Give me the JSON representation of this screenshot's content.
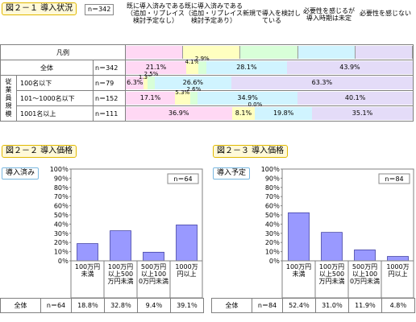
{
  "fig1": {
    "title": "図２－１ 導入状況",
    "n": "n＝342",
    "columns": [
      {
        "label": "既に導入済みである（追加・リプレイス検討予定なし）",
        "color": "#ffd8f4"
      },
      {
        "label": "既に導入済みである（追加・リプレイス検討予定あり）",
        "color": "#ffffc0"
      },
      {
        "label": "新規で導入を検討している",
        "color": "#d8ffd8"
      },
      {
        "label": "必要性を感じるが導入時期は未定",
        "color": "#d0f4ff"
      },
      {
        "label": "必要性を感じない",
        "color": "#e4dcf8"
      }
    ],
    "legend_label": "凡例",
    "group_label": "従業員規模",
    "rows": [
      {
        "label": "全体",
        "n": "n＝342",
        "values": [
          21.1,
          4.1,
          2.9,
          28.1,
          43.9
        ],
        "labels": [
          "21.1%",
          "4.1%",
          "2.9%",
          "28.1%",
          "43.9%"
        ]
      },
      {
        "label": "100名以下",
        "n": "n＝79",
        "values": [
          6.3,
          1.3,
          2.5,
          26.6,
          63.3
        ],
        "labels": [
          "6.3%",
          "1.3%",
          "2.5%",
          "26.6%",
          "63.3%"
        ]
      },
      {
        "label": "101～1000名以下",
        "n": "n＝152",
        "values": [
          17.1,
          5.3,
          2.6,
          34.9,
          40.1
        ],
        "labels": [
          "17.1%",
          "5.3%",
          "2.6%",
          "34.9%",
          "40.1%"
        ]
      },
      {
        "label": "1001名以上",
        "n": "n＝111",
        "values": [
          36.9,
          8.1,
          0.0,
          19.8,
          35.1
        ],
        "labels": [
          "36.9%",
          "8.1%",
          "0.0%",
          "19.8%",
          "35.1%"
        ]
      }
    ]
  },
  "fig2": {
    "title": "図２－２ 導入価格",
    "label": "導入済み",
    "n": "n＝64",
    "row_label": "全体",
    "categories": [
      "100万円未満",
      "100万円以上500万円未満",
      "500万円以上1000万円未満",
      "1000万円以上"
    ],
    "values": [
      18.8,
      32.8,
      9.4,
      39.1
    ],
    "labels": [
      "18.8％",
      "32.8％",
      "9.4％",
      "39.1％"
    ]
  },
  "fig3": {
    "title": "図２－３ 導入価格",
    "label": "導入予定",
    "n": "n＝84",
    "row_label": "全体",
    "categories": [
      "100万円未満",
      "100万円以上500万円未満",
      "500万円以上1000万円未満",
      "1000万円以上"
    ],
    "values": [
      52.4,
      31.0,
      11.9,
      4.8
    ],
    "labels": [
      "52.4％",
      "31.0％",
      "11.9％",
      "4.8％"
    ]
  },
  "axis_ticks": [
    "0％",
    "10％",
    "20％",
    "30％",
    "40％",
    "50％",
    "60％",
    "70％",
    "80％",
    "90％",
    "100％"
  ],
  "chart_data": [
    {
      "type": "bar",
      "title": "図２－１ 導入状況",
      "categories": [
        "全体",
        "100名以下",
        "101～1000名以下",
        "1001名以上"
      ],
      "series": [
        {
          "name": "既に導入済みである（追加・リプレイス検討予定なし）",
          "values": [
            21.1,
            6.3,
            17.1,
            36.9
          ]
        },
        {
          "name": "既に導入済みである（追加・リプレイス検討予定あり）",
          "values": [
            4.1,
            1.3,
            5.3,
            8.1
          ]
        },
        {
          "name": "新規で導入を検討している",
          "values": [
            2.9,
            2.5,
            2.6,
            0.0
          ]
        },
        {
          "name": "必要性を感じるが導入時期は未定",
          "values": [
            28.1,
            26.6,
            34.9,
            19.8
          ]
        },
        {
          "name": "必要性を感じない",
          "values": [
            43.9,
            63.3,
            40.1,
            35.1
          ]
        }
      ]
    },
    {
      "type": "bar",
      "title": "図２－２ 導入価格",
      "categories": [
        "100万円未満",
        "100万円以上500万円未満",
        "500万円以上1000万円未満",
        "1000万円以上"
      ],
      "values": [
        18.8,
        32.8,
        9.4,
        39.1
      ],
      "ylim": [
        0,
        100
      ]
    },
    {
      "type": "bar",
      "title": "図２－３ 導入価格",
      "categories": [
        "100万円未満",
        "100万円以上500万円未満",
        "500万円以上1000万円未満",
        "1000万円以上"
      ],
      "values": [
        52.4,
        31.0,
        11.9,
        4.8
      ],
      "ylim": [
        0,
        100
      ]
    }
  ],
  "colors": {
    "bar": "#9999ff",
    "bar_stroke": "#333399"
  }
}
